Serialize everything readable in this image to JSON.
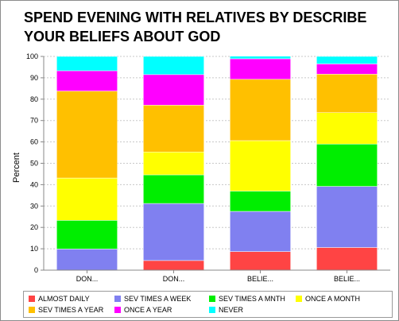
{
  "chart_data": {
    "type": "bar",
    "stacked": true,
    "title": "SPEND EVENING WITH RELATIVES BY DESCRIBE YOUR BELIEFS ABOUT GOD",
    "xlabel": "",
    "ylabel": "Percent",
    "ylim": [
      0,
      100
    ],
    "yticks": [
      0,
      10,
      20,
      30,
      40,
      50,
      60,
      70,
      80,
      90,
      100
    ],
    "grid": true,
    "legend_position": "bottom",
    "categories": [
      "DON...",
      "DON...",
      "BELIE...",
      "BELIE..."
    ],
    "series": [
      {
        "name": "ALMOST DAILY",
        "color": "#ff4444",
        "values": [
          0.0,
          4.5,
          8.7,
          10.6
        ]
      },
      {
        "name": "SEV TIMES A WEEK",
        "color": "#8080f0",
        "values": [
          9.9,
          26.7,
          18.8,
          28.6
        ]
      },
      {
        "name": "SEV TIMES A MNTH",
        "color": "#00ee00",
        "values": [
          13.4,
          13.4,
          9.5,
          19.8
        ]
      },
      {
        "name": "ONCE A MONTH",
        "color": "#ffff00",
        "values": [
          19.8,
          10.7,
          23.6,
          14.7
        ]
      },
      {
        "name": "SEV TIMES A YEAR",
        "color": "#ffc000",
        "values": [
          40.7,
          21.9,
          28.7,
          18.0
        ]
      },
      {
        "name": "ONCE A YEAR",
        "color": "#ff00ff",
        "values": [
          9.5,
          14.3,
          9.6,
          4.8
        ]
      },
      {
        "name": "NEVER",
        "color": "#00ffff",
        "values": [
          6.7,
          8.5,
          1.2,
          3.5
        ]
      }
    ]
  }
}
